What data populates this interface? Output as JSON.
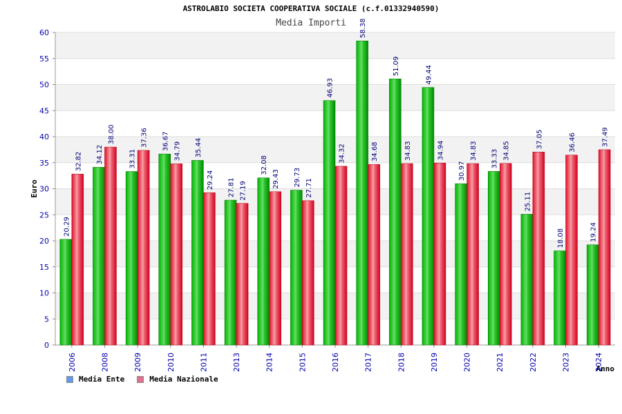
{
  "chart_data": {
    "type": "bar",
    "title": "ASTROLABIO SOCIETA COOPERATIVA SOCIALE (c.f.01332940590)",
    "subtitle": "Media Importi",
    "xlabel": "Anno",
    "ylabel": "Euro",
    "ylim": [
      0,
      60
    ],
    "yticks": [
      0,
      5,
      10,
      15,
      20,
      25,
      30,
      35,
      40,
      45,
      50,
      55,
      60
    ],
    "grid": true,
    "legend_position": "bottom-left",
    "categories": [
      "2006",
      "2008",
      "2009",
      "2010",
      "2011",
      "2013",
      "2014",
      "2015",
      "2016",
      "2017",
      "2018",
      "2019",
      "2020",
      "2021",
      "2022",
      "2023",
      "2024"
    ],
    "series": [
      {
        "name": "Media Ente",
        "color": "#00a000",
        "legend_color": "#6699ee",
        "values": [
          20.29,
          34.12,
          33.31,
          36.67,
          35.44,
          27.81,
          32.08,
          29.73,
          46.93,
          58.38,
          51.09,
          49.44,
          30.97,
          33.33,
          25.11,
          18.08,
          19.24
        ],
        "labels": [
          "20.29",
          "34.12",
          "33.31",
          "36.67",
          "35.44",
          "27.81",
          "32.08",
          "29.73",
          "46.93",
          "58.38",
          "51.09",
          "49.44",
          "30.97",
          "33.33",
          "25.11",
          "18.08",
          "19.24"
        ]
      },
      {
        "name": "Media Nazionale",
        "color": "#e8303a",
        "legend_color": "#e07090",
        "values": [
          32.82,
          38.0,
          37.36,
          34.79,
          29.24,
          27.19,
          29.43,
          27.71,
          34.32,
          34.68,
          34.83,
          34.94,
          34.83,
          34.85,
          37.05,
          36.46,
          37.49
        ],
        "labels": [
          "32.82",
          "38.00",
          "37.36",
          "34.79",
          "29.24",
          "27.19",
          "29.43",
          "27.71",
          "34.32",
          "34.68",
          "34.83",
          "34.94",
          "34.83",
          "34.85",
          "37.05",
          "36.46",
          "37.49"
        ]
      }
    ]
  }
}
